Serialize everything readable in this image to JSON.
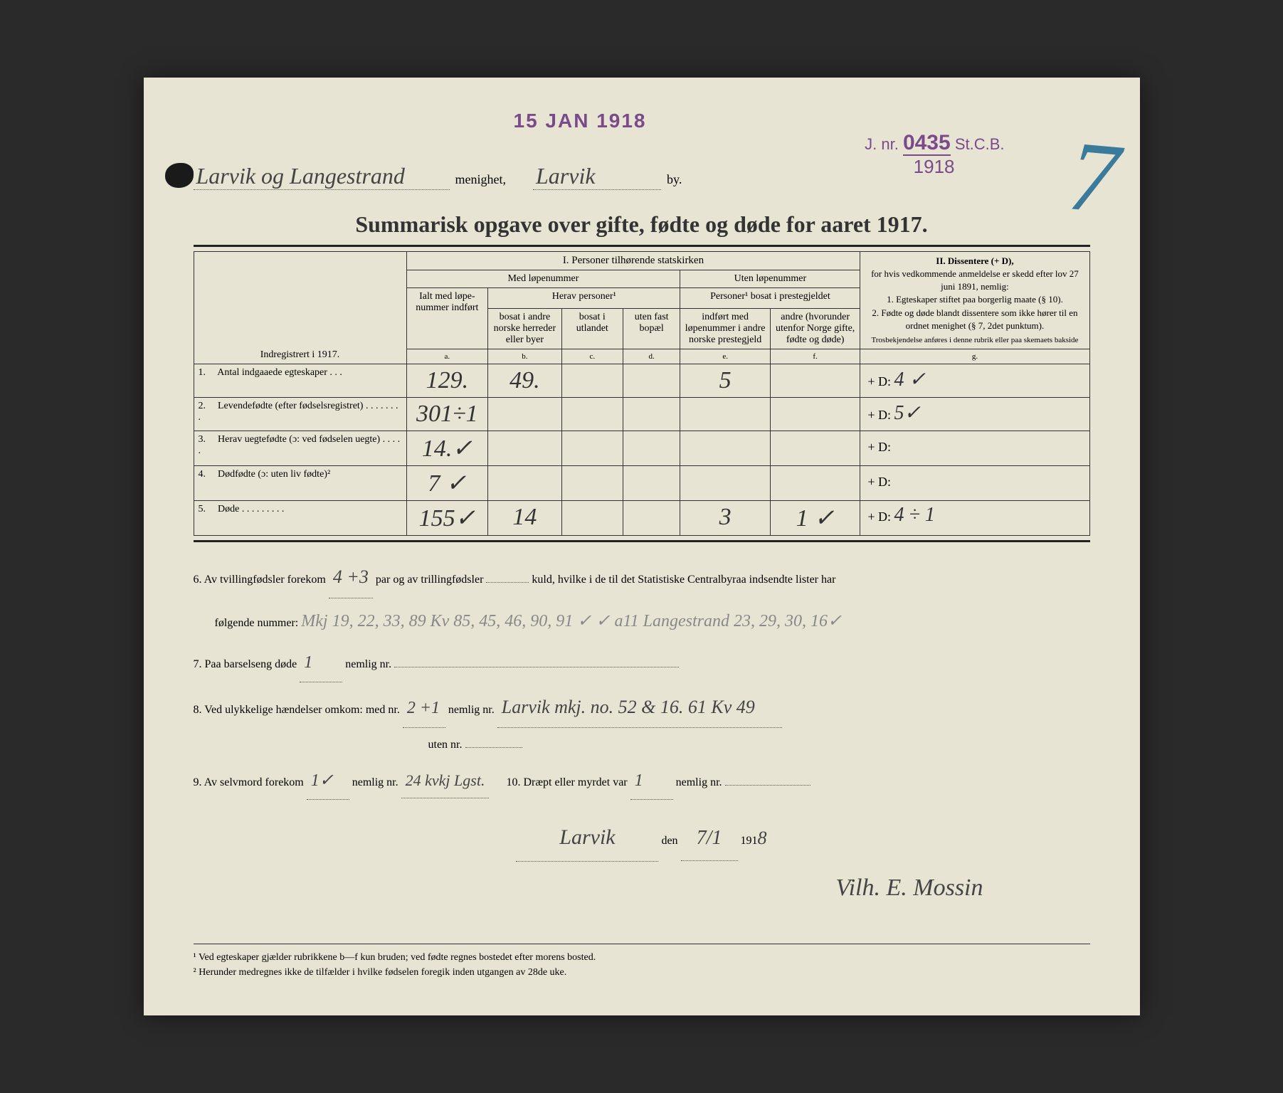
{
  "stamp": {
    "date": "15 JAN 1918",
    "jnr_label": "J. nr.",
    "jnr_num": "0435",
    "jnr_suffix": "St.C.B.",
    "year": "1918"
  },
  "big_mark": "7",
  "header": {
    "parish_hand": "Larvik og Langestrand",
    "menighet": "menighet,",
    "town_hand": "Larvik",
    "by": "by."
  },
  "title": "Summarisk opgave over gifte, fødte og døde for aaret 1917.",
  "table": {
    "section_i": "I.  Personer tilhørende statskirken",
    "med": "Med løpenummer",
    "uten": "Uten løpenummer",
    "herav": "Herav personer¹",
    "personer_bosat": "Personer¹ bosat i prestegjeldet",
    "indreg": "Indregistrert i 1917.",
    "col_a": "Ialt med løpe-nummer indført",
    "col_b": "bosat i andre norske herreder eller byer",
    "col_c": "bosat i utlandet",
    "col_d": "uten fast bopæl",
    "col_e": "indført med løpenummer i andre norske prestegjeld",
    "col_f": "andre (hvorunder utenfor Norge gifte, fødte og døde)",
    "letter_a": "a.",
    "letter_b": "b.",
    "letter_c": "c.",
    "letter_d": "d.",
    "letter_e": "e.",
    "letter_f": "f.",
    "letter_g": "g.",
    "section_ii_title": "II.  Dissentere (+ D),",
    "section_ii_body": "for hvis vedkommende anmeldelse er skedd efter lov 27 juni 1891, nemlig:\n1. Egteskaper stiftet paa borgerlig maate (§ 10).\n2. Fødte og døde blandt dissentere som ikke hører til en ordnet menighet (§ 7, 2det punktum).",
    "section_ii_foot": "Trosbekjendelse anføres i denne rubrik eller paa skemaets bakside",
    "rows": [
      {
        "n": "1.",
        "label": "Antal indgaaede egteskaper . . .",
        "a": "129.",
        "b": "49.",
        "c": "",
        "d": "",
        "e": "5",
        "f": "",
        "g": "+ D: 4 ✓"
      },
      {
        "n": "2.",
        "label": "Levendefødte (efter fødselsregistret) . . . . . . . .",
        "a": "301÷1",
        "b": "",
        "c": "",
        "d": "",
        "e": "",
        "f": "",
        "g": "+ D: 5✓"
      },
      {
        "n": "3.",
        "label": "Herav uegtefødte (ɔ: ved fødselen uegte) . . . . .",
        "a": "14.✓",
        "b": "",
        "c": "",
        "d": "",
        "e": "",
        "f": "",
        "g": "+ D:"
      },
      {
        "n": "4.",
        "label": "Dødfødte (ɔ: uten liv fødte)²",
        "a": "7 ✓",
        "b": "",
        "c": "",
        "d": "",
        "e": "",
        "f": "",
        "g": "+ D:"
      },
      {
        "n": "5.",
        "label": "Døde . . . . . . . . .",
        "a": "155✓",
        "b": "14",
        "c": "",
        "d": "",
        "e": "3",
        "f": "1 ✓",
        "g": "+ D: 4 ÷ 1"
      }
    ]
  },
  "notes": {
    "l6a": "6.  Av tvillingfødsler forekom",
    "l6_twins": "4 +3",
    "l6b": "par og av trillingfødsler",
    "l6c": "kuld, hvilke i de til det Statistiske Centralbyraa indsendte lister har",
    "l6d": "følgende nummer:",
    "l6_hand": "Mkj 19, 22, 33, 89    Kv 85, 45, 46, 90, 91 ✓ ✓ a11  Langestrand 23, 29, 30, 16✓",
    "l7": "7.  Paa barselseng døde",
    "l7_v": "1",
    "l7b": "nemlig nr.",
    "l8": "8.  Ved ulykkelige hændelser omkom:  med nr.",
    "l8_v": "2 +1",
    "l8b": "nemlig nr.",
    "l8_hand": "Larvik mkj. no. 52 & 16.   61   Kv 49",
    "l8c": "uten nr.",
    "l9": "9.  Av selvmord forekom",
    "l9_v": "1✓",
    "l9b": "nemlig nr.",
    "l9_hand": "24 kvkj Lgst.",
    "l10": "10.  Dræpt eller myrdet var",
    "l10_v": "1",
    "l10b": "nemlig nr.",
    "sig_place": "Larvik",
    "sig_den": "den",
    "sig_date": "7/1",
    "sig_year_pre": "191",
    "sig_year": "8",
    "signature": "Vilh. E. Mossin"
  },
  "footnotes": {
    "f1": "¹ Ved egteskaper gjælder rubrikkene b—f kun bruden; ved fødte regnes bostedet efter morens bosted.",
    "f2": "² Herunder medregnes ikke de tilfælder i hvilke fødselen foregik inden utgangen av 28de uke."
  }
}
